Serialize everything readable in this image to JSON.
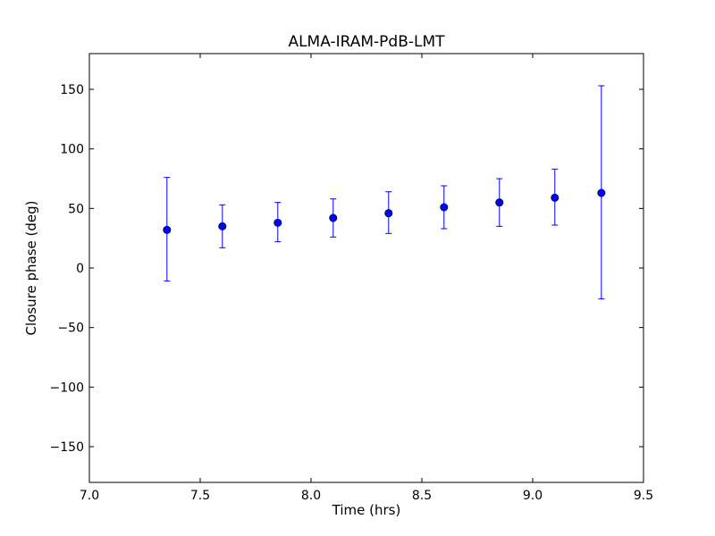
{
  "chart_data": {
    "type": "scatter",
    "title": "ALMA-IRAM-PdB-LMT",
    "xlabel": "Time (hrs)",
    "ylabel": "Closure phase (deg)",
    "xlim": [
      7.0,
      9.5
    ],
    "ylim": [
      -180,
      180
    ],
    "xticks": [
      7.0,
      7.5,
      8.0,
      8.5,
      9.0,
      9.5
    ],
    "xtick_labels": [
      "7.0",
      "7.5",
      "8.0",
      "8.5",
      "9.0",
      "9.5"
    ],
    "yticks": [
      -150,
      -100,
      -50,
      0,
      50,
      100,
      150
    ],
    "ytick_labels": [
      "−150",
      "−100",
      "−50",
      "0",
      "50",
      "100",
      "150"
    ],
    "grid": false,
    "marker_color": "#0000ff",
    "points": [
      {
        "x": 7.35,
        "y": 32,
        "yerr_low": -11,
        "yerr_high": 76
      },
      {
        "x": 7.6,
        "y": 35,
        "yerr_low": 17,
        "yerr_high": 53
      },
      {
        "x": 7.85,
        "y": 38,
        "yerr_low": 22,
        "yerr_high": 55
      },
      {
        "x": 8.1,
        "y": 42,
        "yerr_low": 26,
        "yerr_high": 58
      },
      {
        "x": 8.35,
        "y": 46,
        "yerr_low": 29,
        "yerr_high": 64
      },
      {
        "x": 8.6,
        "y": 51,
        "yerr_low": 33,
        "yerr_high": 69
      },
      {
        "x": 8.85,
        "y": 55,
        "yerr_low": 35,
        "yerr_high": 75
      },
      {
        "x": 9.1,
        "y": 59,
        "yerr_low": 36,
        "yerr_high": 83
      },
      {
        "x": 9.31,
        "y": 63,
        "yerr_low": -26,
        "yerr_high": 153
      }
    ]
  }
}
